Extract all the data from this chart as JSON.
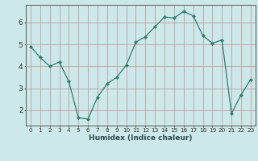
{
  "xlabel": "Humidex (Indice chaleur)",
  "ylabel": "",
  "x_values": [
    0,
    1,
    2,
    3,
    4,
    5,
    6,
    7,
    8,
    9,
    10,
    11,
    12,
    13,
    14,
    15,
    16,
    17,
    18,
    19,
    20,
    21,
    22,
    23
  ],
  "y_values": [
    4.9,
    4.4,
    4.0,
    4.2,
    3.3,
    1.65,
    1.6,
    2.6,
    3.2,
    3.5,
    4.05,
    5.1,
    5.35,
    5.8,
    6.25,
    6.2,
    6.5,
    6.3,
    5.4,
    5.05,
    5.2,
    1.85,
    2.7,
    3.4
  ],
  "line_color": "#2e7d6e",
  "marker_color": "#2e7d6e",
  "bg_color": "#cce8e8",
  "grid_color_v": "#c09090",
  "grid_color_h": "#c09090",
  "axis_color": "#555555",
  "tick_color": "#333333",
  "label_color": "#2e4a4a",
  "ylim": [
    1.3,
    6.8
  ],
  "xlim": [
    -0.5,
    23.5
  ],
  "yticks": [
    2,
    3,
    4,
    5,
    6
  ],
  "xticks": [
    0,
    1,
    2,
    3,
    4,
    5,
    6,
    7,
    8,
    9,
    10,
    11,
    12,
    13,
    14,
    15,
    16,
    17,
    18,
    19,
    20,
    21,
    22,
    23
  ],
  "xlabel_fontsize": 6.5,
  "ytick_fontsize": 6.5,
  "xtick_fontsize": 5.2
}
